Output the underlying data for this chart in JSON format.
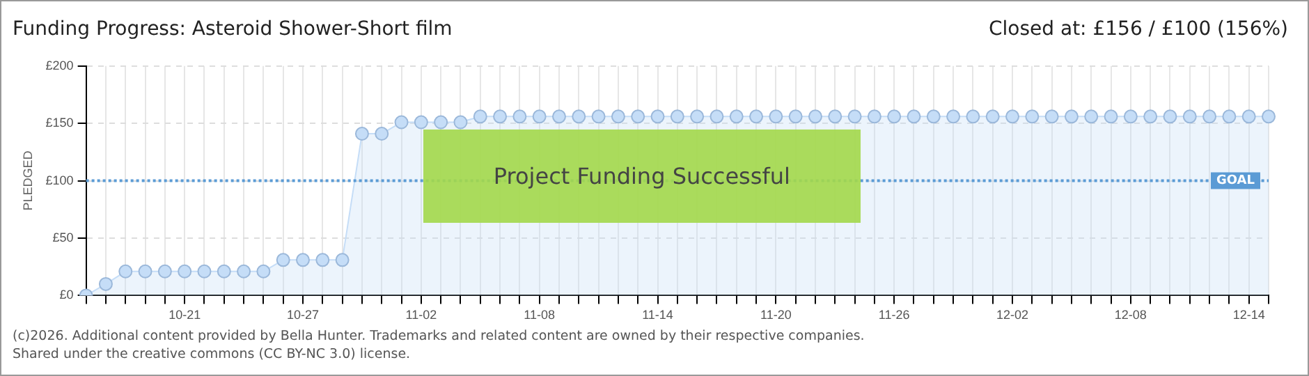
{
  "chart_data": {
    "type": "area",
    "title": "Funding Progress: Asteroid Shower-Short film",
    "subtitle": "Closed at:  £156 / £100 (156%)",
    "ylabel": "PLEDGED",
    "categories": [
      null,
      null,
      null,
      null,
      null,
      "10-21",
      null,
      null,
      null,
      null,
      null,
      "10-27",
      null,
      null,
      null,
      null,
      null,
      "11-02",
      null,
      null,
      null,
      null,
      null,
      "11-08",
      null,
      null,
      null,
      null,
      null,
      "11-14",
      null,
      null,
      null,
      null,
      null,
      "11-20",
      null,
      null,
      null,
      null,
      null,
      "11-26",
      null,
      null,
      null,
      null,
      null,
      "12-02",
      null,
      null,
      null,
      null,
      null,
      "12-08",
      null,
      null,
      null,
      null,
      null,
      "12-14",
      null
    ],
    "series": [
      {
        "color": "#c5ddf7",
        "values": [
          0,
          10,
          21,
          21,
          21,
          21,
          21,
          21,
          21,
          21,
          31,
          31,
          31,
          31,
          141,
          141,
          151,
          151,
          151,
          151,
          156,
          156,
          156,
          156,
          156,
          156,
          156,
          156,
          156,
          156,
          156,
          156,
          156,
          156,
          156,
          156,
          156,
          156,
          156,
          156,
          156,
          156,
          156,
          156,
          156,
          156,
          156,
          156,
          156,
          156,
          156,
          156,
          156,
          156,
          156,
          156,
          156,
          156,
          156,
          156,
          156
        ]
      }
    ],
    "ylim": [
      0,
      200
    ],
    "yticks": [
      {
        "value": 0,
        "label": "£0"
      },
      {
        "value": 50,
        "label": "£50"
      },
      {
        "value": 100,
        "label": "£100"
      },
      {
        "value": 150,
        "label": "£150"
      },
      {
        "value": 200,
        "label": "£200"
      }
    ],
    "grid": true,
    "marker": "circle",
    "line_style": "solid",
    "legend": false,
    "ref_lines": [
      {
        "axis": "y",
        "value": 100,
        "label": "GOAL",
        "color": "#5b9bd5",
        "line_style": "dotted"
      }
    ],
    "annotations": [
      "Project Funding Successful",
      "(c)2026. Additional content provided by Bella Hunter. Trademarks and related content are owned by their respective companies.",
      "Shared under the creative commons (CC BY-NC 3.0) license."
    ]
  }
}
